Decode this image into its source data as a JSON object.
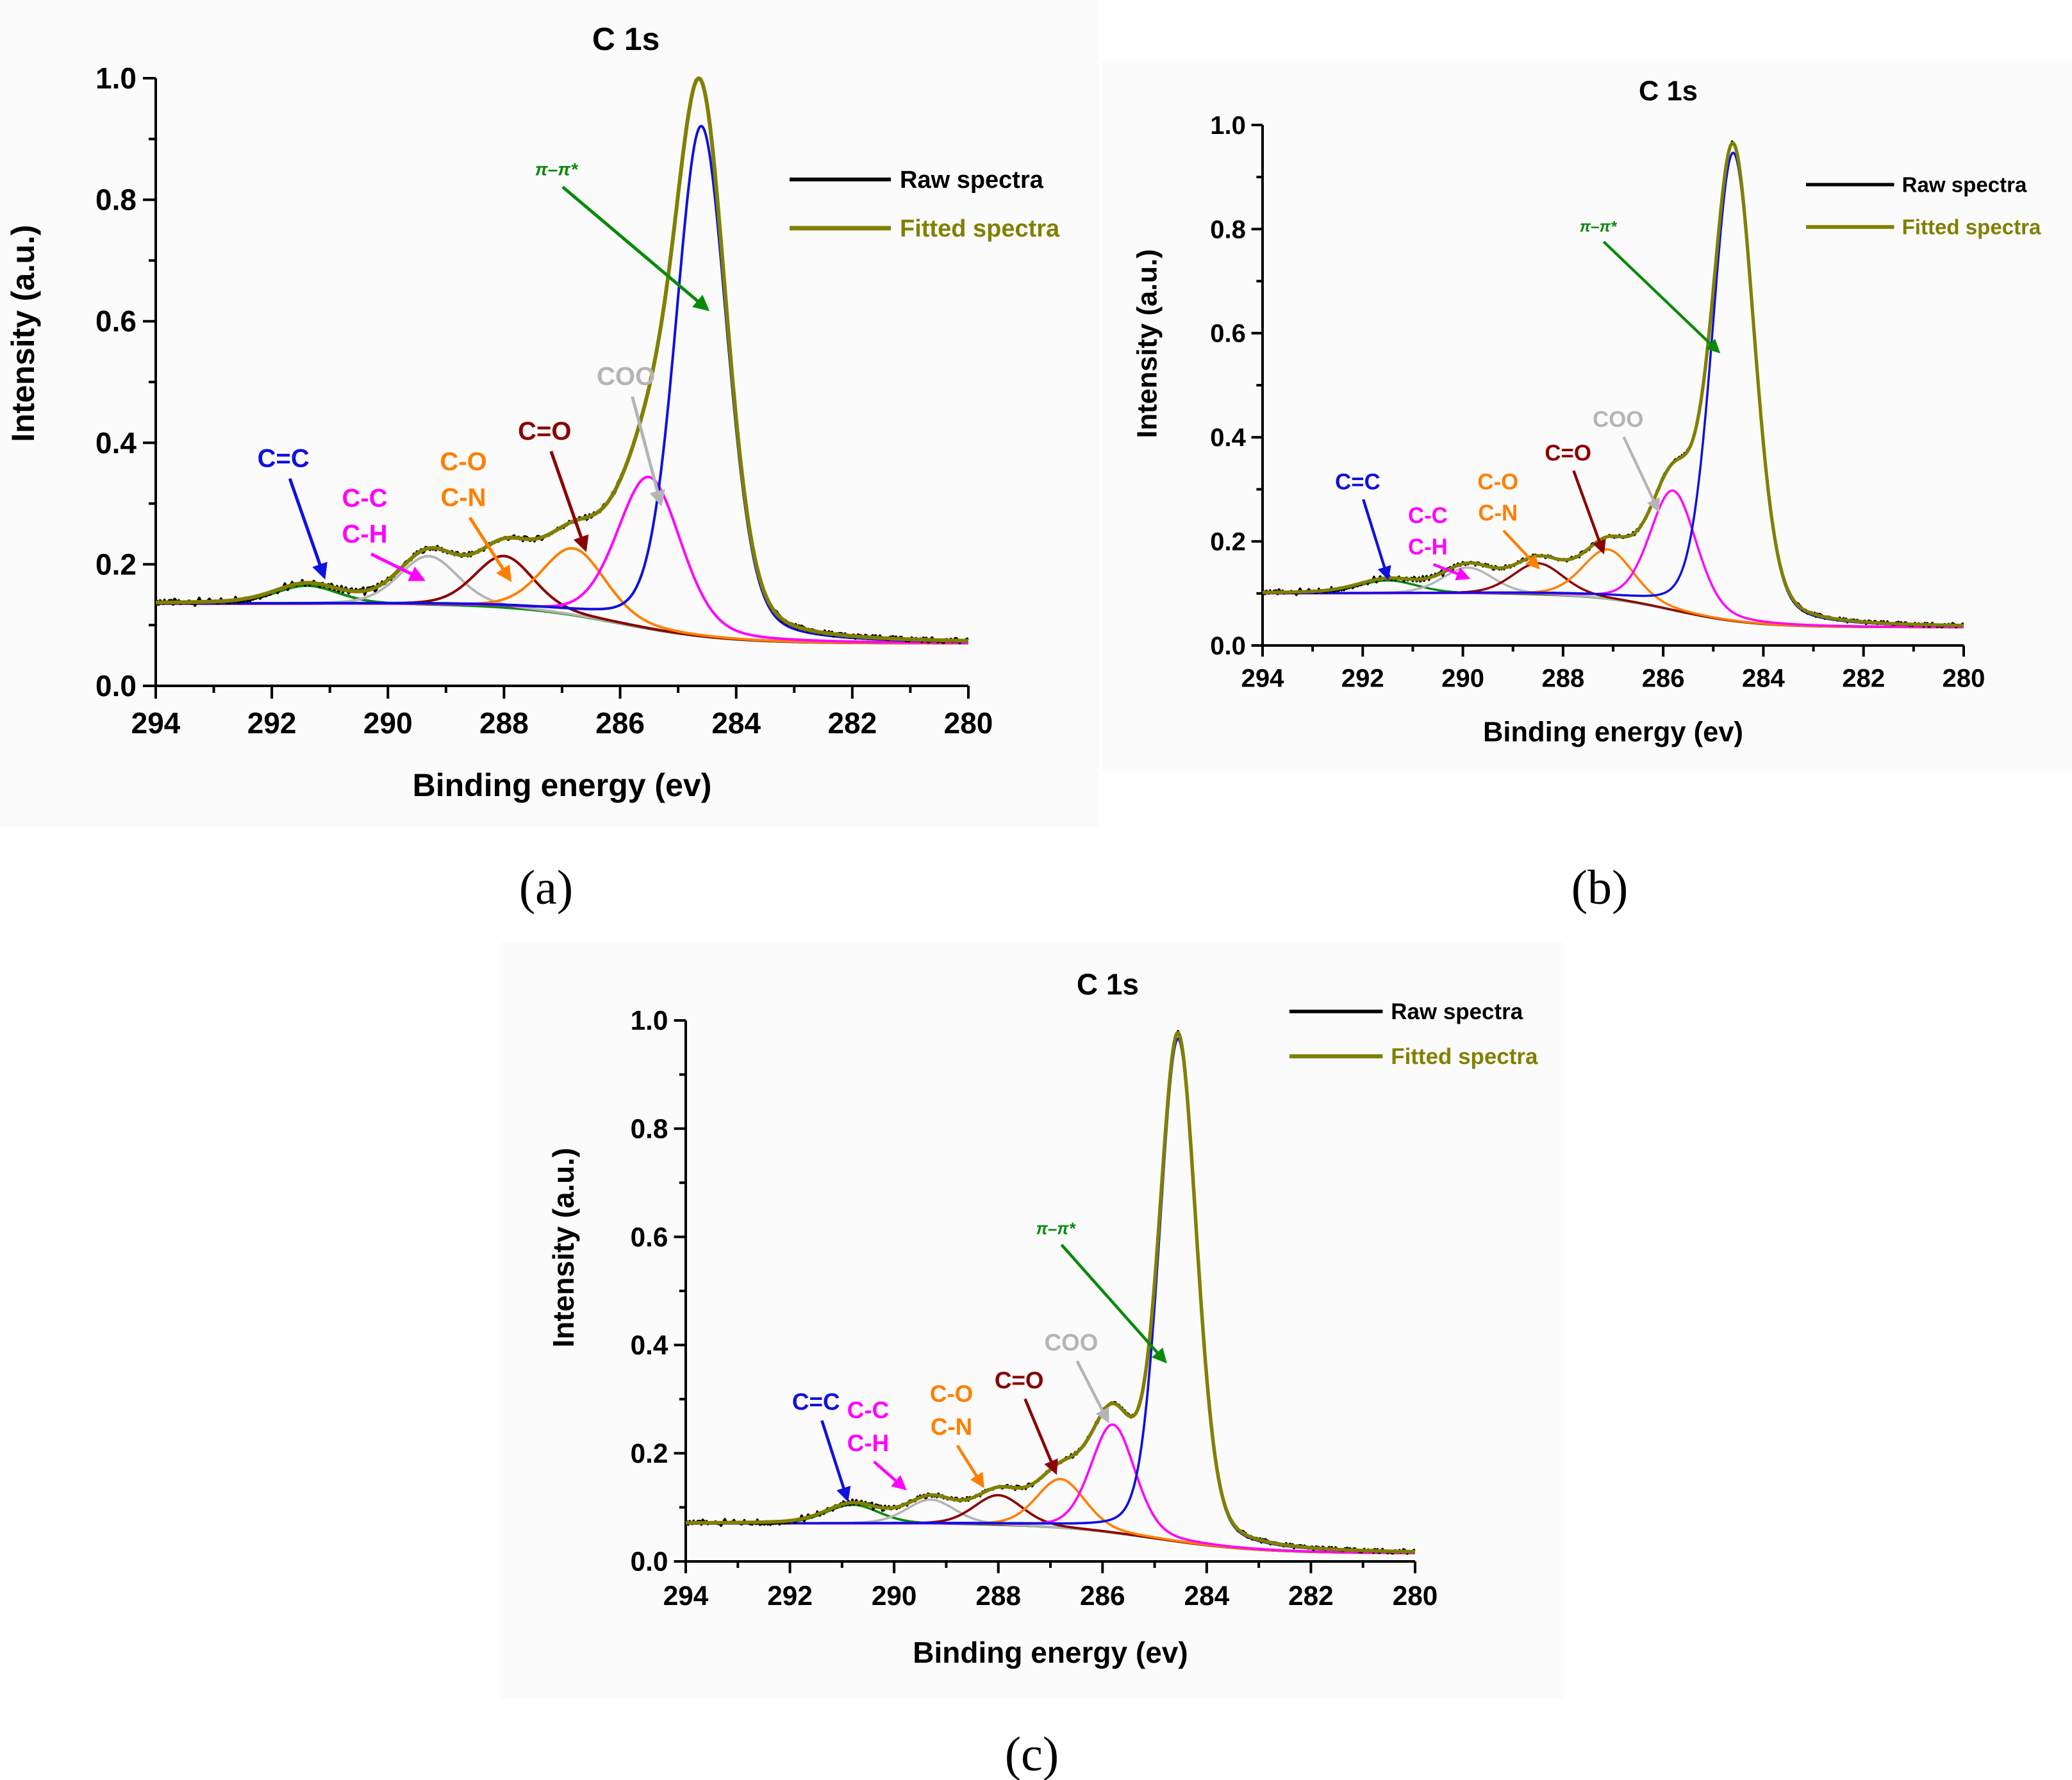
{
  "figure_captions": [
    "(a)",
    "(b)",
    "(c)"
  ],
  "chart_data": [
    {
      "id": "a",
      "type": "line",
      "title": "C 1s",
      "xlabel": "Binding energy (ev)",
      "ylabel": "Intensity (a.u.)",
      "xlim": [
        294,
        280
      ],
      "ylim": [
        0.0,
        1.0
      ],
      "xticks": [
        294,
        292,
        290,
        288,
        286,
        284,
        282,
        280
      ],
      "xtick_labels": [
        "294",
        "292",
        "290",
        "288",
        "286",
        "284",
        "282",
        "280"
      ],
      "yticks": [
        0.0,
        0.2,
        0.4,
        0.6,
        0.8,
        1.0
      ],
      "ytick_labels": [
        "0.0",
        "0.2",
        "0.4",
        "0.6",
        "0.8",
        "1.0"
      ],
      "background": {
        "high": 0.135,
        "low": 0.07,
        "center": 286.0,
        "width": 0.9
      },
      "components": [
        {
          "name": "C=C",
          "label_lines": [
            "C=C"
          ],
          "center": 284.6,
          "amplitude": 0.84,
          "fwhm": 1.05,
          "color": "#1010e0"
        },
        {
          "name": "C-C/C-H",
          "label_lines": [
            "C-C",
            "C-H"
          ],
          "center": 285.5,
          "amplitude": 0.25,
          "fwhm": 1.3,
          "color": "#ff00ff"
        },
        {
          "name": "C-O/C-N",
          "label_lines": [
            "C-O",
            "C-N"
          ],
          "center": 286.8,
          "amplitude": 0.11,
          "fwhm": 1.3,
          "color": "#ff7f00"
        },
        {
          "name": "C=O",
          "label_lines": [
            "C=O"
          ],
          "center": 288.0,
          "amplitude": 0.085,
          "fwhm": 1.2,
          "color": "#8b0000"
        },
        {
          "name": "COO",
          "label_lines": [
            "COO"
          ],
          "center": 289.3,
          "amplitude": 0.08,
          "fwhm": 1.2,
          "color": "#b5b5b5"
        },
        {
          "name": "π–π*",
          "label_lines": [
            "π–π*"
          ],
          "center": 291.4,
          "amplitude": 0.03,
          "fwhm": 1.3,
          "color": "#0a8a0a"
        }
      ],
      "annotation_points": [
        {
          "label_x": 291.8,
          "label_y": 0.36,
          "arrow_x": 291.1,
          "arrow_y": 0.18
        },
        {
          "label_x": 290.4,
          "label_y": 0.295,
          "arrow_x": 289.4,
          "arrow_y": 0.175
        },
        {
          "label_x": 288.7,
          "label_y": 0.355,
          "arrow_x": 287.9,
          "arrow_y": 0.175
        },
        {
          "label_x": 287.3,
          "label_y": 0.405,
          "arrow_x": 286.6,
          "arrow_y": 0.225
        },
        {
          "label_x": 285.9,
          "label_y": 0.495,
          "arrow_x": 285.3,
          "arrow_y": 0.3
        },
        {
          "label_x": 287.1,
          "label_y": 0.84,
          "arrow_x": 284.5,
          "arrow_y": 0.62
        }
      ],
      "series": [
        {
          "name": "Raw spectra",
          "color": "#000000"
        },
        {
          "name": "Fitted spectra",
          "color": "#808000"
        }
      ]
    },
    {
      "id": "b",
      "type": "line",
      "title": "C 1s",
      "xlabel": "Binding energy (ev)",
      "ylabel": "Intensity (a.u.)",
      "xlim": [
        294,
        280
      ],
      "ylim": [
        0.0,
        1.0
      ],
      "xticks": [
        294,
        292,
        290,
        288,
        286,
        284,
        282,
        280
      ],
      "xtick_labels": [
        "294",
        "292",
        "290",
        "288",
        "286",
        "284",
        "282",
        "280"
      ],
      "yticks": [
        0.0,
        0.2,
        0.4,
        0.6,
        0.8,
        1.0
      ],
      "ytick_labels": [
        "0.0",
        "0.2",
        "0.4",
        "0.6",
        "0.8",
        "1.0"
      ],
      "background": {
        "high": 0.1,
        "low": 0.035,
        "center": 285.8,
        "width": 0.8
      },
      "components": [
        {
          "name": "C=C",
          "label_lines": [
            "C=C"
          ],
          "center": 284.6,
          "amplitude": 0.9,
          "fwhm": 1.0,
          "color": "#1010e0"
        },
        {
          "name": "C-C/C-H",
          "label_lines": [
            "C-C",
            "C-H"
          ],
          "center": 285.8,
          "amplitude": 0.23,
          "fwhm": 1.1,
          "color": "#ff00ff"
        },
        {
          "name": "C-O/C-N",
          "label_lines": [
            "C-O",
            "C-N"
          ],
          "center": 287.1,
          "amplitude": 0.095,
          "fwhm": 1.2,
          "color": "#ff7f00"
        },
        {
          "name": "C=O",
          "label_lines": [
            "C=O"
          ],
          "center": 288.5,
          "amplitude": 0.06,
          "fwhm": 1.2,
          "color": "#8b0000"
        },
        {
          "name": "COO",
          "label_lines": [
            "COO"
          ],
          "center": 289.9,
          "amplitude": 0.05,
          "fwhm": 1.2,
          "color": "#b5b5b5"
        },
        {
          "name": "π–π*",
          "label_lines": [
            "π–π*"
          ],
          "center": 291.5,
          "amplitude": 0.025,
          "fwhm": 1.4,
          "color": "#0a8a0a"
        }
      ],
      "annotation_points": [
        {
          "label_x": 292.1,
          "label_y": 0.3,
          "arrow_x": 291.5,
          "arrow_y": 0.13
        },
        {
          "label_x": 290.7,
          "label_y": 0.235,
          "arrow_x": 289.9,
          "arrow_y": 0.13
        },
        {
          "label_x": 289.3,
          "label_y": 0.3,
          "arrow_x": 288.5,
          "arrow_y": 0.15
        },
        {
          "label_x": 287.9,
          "label_y": 0.355,
          "arrow_x": 287.2,
          "arrow_y": 0.18
        },
        {
          "label_x": 286.9,
          "label_y": 0.42,
          "arrow_x": 286.1,
          "arrow_y": 0.26
        },
        {
          "label_x": 287.3,
          "label_y": 0.795,
          "arrow_x": 284.9,
          "arrow_y": 0.565
        }
      ],
      "series": [
        {
          "name": "Raw spectra",
          "color": "#000000"
        },
        {
          "name": "Fitted spectra",
          "color": "#808000"
        }
      ]
    },
    {
      "id": "c",
      "type": "line",
      "title": "C 1s",
      "xlabel": "Binding energy (ev)",
      "ylabel": "Intensity (a.u.)",
      "xlim": [
        294,
        280
      ],
      "ylim": [
        0.0,
        1.0
      ],
      "xticks": [
        294,
        292,
        290,
        288,
        286,
        284,
        282,
        280
      ],
      "xtick_labels": [
        "294",
        "292",
        "290",
        "288",
        "286",
        "284",
        "282",
        "280"
      ],
      "yticks": [
        0.0,
        0.2,
        0.4,
        0.6,
        0.8,
        1.0
      ],
      "ytick_labels": [
        "0.0",
        "0.2",
        "0.4",
        "0.6",
        "0.8",
        "1.0"
      ],
      "background": {
        "high": 0.07,
        "low": 0.015,
        "center": 285.0,
        "width": 1.0
      },
      "components": [
        {
          "name": "C=C",
          "label_lines": [
            "C=C"
          ],
          "center": 284.55,
          "amplitude": 0.93,
          "fwhm": 0.85,
          "color": "#1010e0"
        },
        {
          "name": "C-C/C-H",
          "label_lines": [
            "C-C",
            "C-H"
          ],
          "center": 285.8,
          "amplitude": 0.2,
          "fwhm": 1.0,
          "color": "#ff00ff"
        },
        {
          "name": "C-O/C-N",
          "label_lines": [
            "C-O",
            "C-N"
          ],
          "center": 286.8,
          "amplitude": 0.09,
          "fwhm": 1.1,
          "color": "#ff7f00"
        },
        {
          "name": "C=O",
          "label_lines": [
            "C=O"
          ],
          "center": 288.0,
          "amplitude": 0.055,
          "fwhm": 1.1,
          "color": "#8b0000"
        },
        {
          "name": "COO",
          "label_lines": [
            "COO"
          ],
          "center": 289.3,
          "amplitude": 0.045,
          "fwhm": 1.1,
          "color": "#b5b5b5"
        },
        {
          "name": "π–π*",
          "label_lines": [
            "π–π*"
          ],
          "center": 290.8,
          "amplitude": 0.035,
          "fwhm": 1.2,
          "color": "#0a8a0a"
        }
      ],
      "annotation_points": [
        {
          "label_x": 291.5,
          "label_y": 0.28,
          "arrow_x": 290.9,
          "arrow_y": 0.115
        },
        {
          "label_x": 290.5,
          "label_y": 0.265,
          "arrow_x": 289.8,
          "arrow_y": 0.135
        },
        {
          "label_x": 288.9,
          "label_y": 0.295,
          "arrow_x": 288.3,
          "arrow_y": 0.14
        },
        {
          "label_x": 287.6,
          "label_y": 0.32,
          "arrow_x": 286.9,
          "arrow_y": 0.165
        },
        {
          "label_x": 286.6,
          "label_y": 0.39,
          "arrow_x": 285.9,
          "arrow_y": 0.26
        },
        {
          "label_x": 286.9,
          "label_y": 0.605,
          "arrow_x": 284.8,
          "arrow_y": 0.37
        }
      ],
      "series": [
        {
          "name": "Raw spectra",
          "color": "#000000"
        },
        {
          "name": "Fitted spectra",
          "color": "#808000"
        }
      ]
    }
  ]
}
